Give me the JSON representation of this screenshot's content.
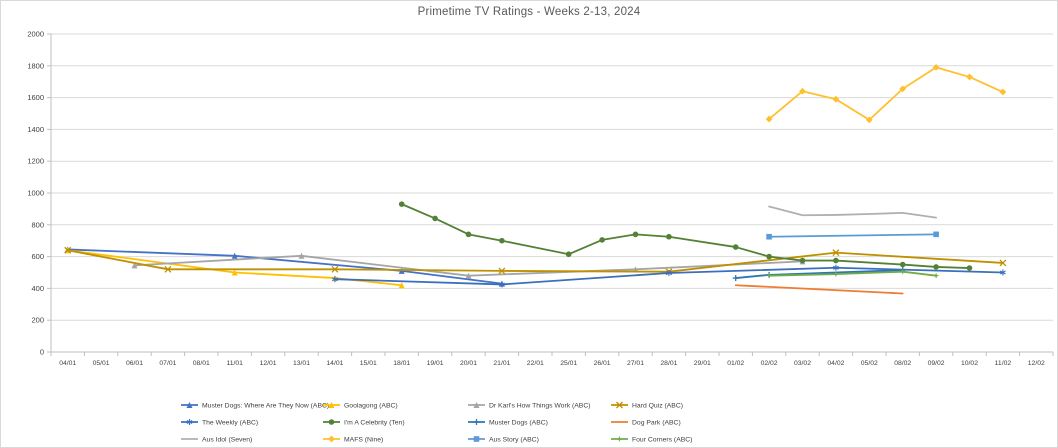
{
  "chart_data": {
    "type": "line",
    "title": "Primetime TV Ratings - Weeks 2-13, 2024",
    "xlabel": "",
    "ylabel": "",
    "y_axis": {
      "min": 0,
      "max": 2000,
      "step": 200
    },
    "grid": true,
    "legend_position": "bottom",
    "categories": [
      "04/01",
      "05/01",
      "06/01",
      "07/01",
      "08/01",
      "11/01",
      "12/01",
      "13/01",
      "14/01",
      "15/01",
      "18/01",
      "19/01",
      "20/01",
      "21/01",
      "22/01",
      "25/01",
      "26/01",
      "27/01",
      "28/01",
      "29/01",
      "01/02",
      "02/02",
      "03/02",
      "04/02",
      "05/02",
      "08/02",
      "09/02",
      "10/02",
      "11/02",
      "12/02"
    ],
    "series": [
      {
        "name": "Muster Dogs: Where Are They Now (ABC)",
        "color": "#4472C4",
        "marker": "triangle",
        "points": [
          [
            "04/01",
            645
          ],
          [
            "11/01",
            605
          ],
          [
            "18/01",
            510
          ],
          [
            "21/01",
            430
          ]
        ]
      },
      {
        "name": "Goolagong (ABC)",
        "color": "#FFC000",
        "marker": "triangle",
        "points": [
          [
            "04/01",
            640
          ],
          [
            "11/01",
            500
          ],
          [
            "14/01",
            465
          ],
          [
            "18/01",
            420
          ]
        ]
      },
      {
        "name": "Dr Karl's How Things Work (ABC)",
        "color": "#A5A5A5",
        "marker": "triangle",
        "points": [
          [
            "06/01",
            545
          ],
          [
            "13/01",
            605
          ],
          [
            "20/01",
            480
          ],
          [
            "27/01",
            520
          ],
          [
            "03/02",
            570
          ]
        ]
      },
      {
        "name": "Hard Quiz (ABC)",
        "color": "#BF9000",
        "marker": "x",
        "points": [
          [
            "04/01",
            640
          ],
          [
            "07/01",
            520
          ],
          [
            "14/01",
            520
          ],
          [
            "21/01",
            510
          ],
          [
            "28/01",
            505
          ],
          [
            "04/02",
            625
          ],
          [
            "11/02",
            560
          ]
        ]
      },
      {
        "name": "The Weekly (ABC)",
        "color": "#3C6EBE",
        "marker": "asterisk",
        "points": [
          [
            "14/01",
            458
          ],
          [
            "21/01",
            425
          ],
          [
            "28/01",
            497
          ],
          [
            "04/02",
            530
          ],
          [
            "11/02",
            500
          ]
        ]
      },
      {
        "name": "I'm A Celebrity (Ten)",
        "color": "#538135",
        "marker": "circle",
        "points": [
          [
            "18/01",
            930
          ],
          [
            "19/01",
            840
          ],
          [
            "20/01",
            740
          ],
          [
            "21/01",
            700
          ],
          [
            "25/01",
            615
          ],
          [
            "26/01",
            705
          ],
          [
            "27/01",
            740
          ],
          [
            "28/01",
            725
          ],
          [
            "01/02",
            660
          ],
          [
            "02/02",
            600
          ],
          [
            "03/02",
            575
          ],
          [
            "04/02",
            575
          ],
          [
            "08/02",
            550
          ],
          [
            "09/02",
            535
          ],
          [
            "10/02",
            528
          ]
        ]
      },
      {
        "name": "Muster Dogs (ABC)",
        "color": "#2E75B6",
        "marker": "plus",
        "points": [
          [
            "01/02",
            465
          ],
          [
            "02/02",
            485
          ],
          [
            "08/02",
            515
          ]
        ]
      },
      {
        "name": "Dog Park (ABC)",
        "color": "#ED7D31",
        "marker": "none",
        "points": [
          [
            "01/02",
            420
          ],
          [
            "08/02",
            368
          ]
        ]
      },
      {
        "name": "Aus Idol (Seven)",
        "color": "#B0B0B0",
        "marker": "none",
        "points": [
          [
            "02/02",
            915
          ],
          [
            "03/02",
            860
          ],
          [
            "04/02",
            862
          ],
          [
            "05/02",
            868
          ],
          [
            "08/02",
            875
          ],
          [
            "09/02",
            845
          ]
        ]
      },
      {
        "name": "MAFS (Nine)",
        "color": "#FFC02E",
        "marker": "diamond",
        "points": [
          [
            "02/02",
            1465
          ],
          [
            "03/02",
            1640
          ],
          [
            "04/02",
            1590
          ],
          [
            "05/02",
            1460
          ],
          [
            "08/02",
            1655
          ],
          [
            "09/02",
            1790
          ],
          [
            "10/02",
            1730
          ],
          [
            "11/02",
            1635
          ]
        ]
      },
      {
        "name": "Aus Story (ABC)",
        "color": "#5B9BD5",
        "marker": "square",
        "points": [
          [
            "02/02",
            725
          ],
          [
            "09/02",
            740
          ]
        ]
      },
      {
        "name": "Four Corners (ABC)",
        "color": "#70AD47",
        "marker": "star",
        "points": [
          [
            "02/02",
            480
          ],
          [
            "04/02",
            490
          ],
          [
            "08/02",
            505
          ],
          [
            "09/02",
            480
          ]
        ]
      }
    ],
    "style": {
      "gridline_color": "#D9D9D9",
      "axis_color": "#BFBFBF",
      "label_color": "#404040",
      "title_color": "#595959"
    }
  }
}
